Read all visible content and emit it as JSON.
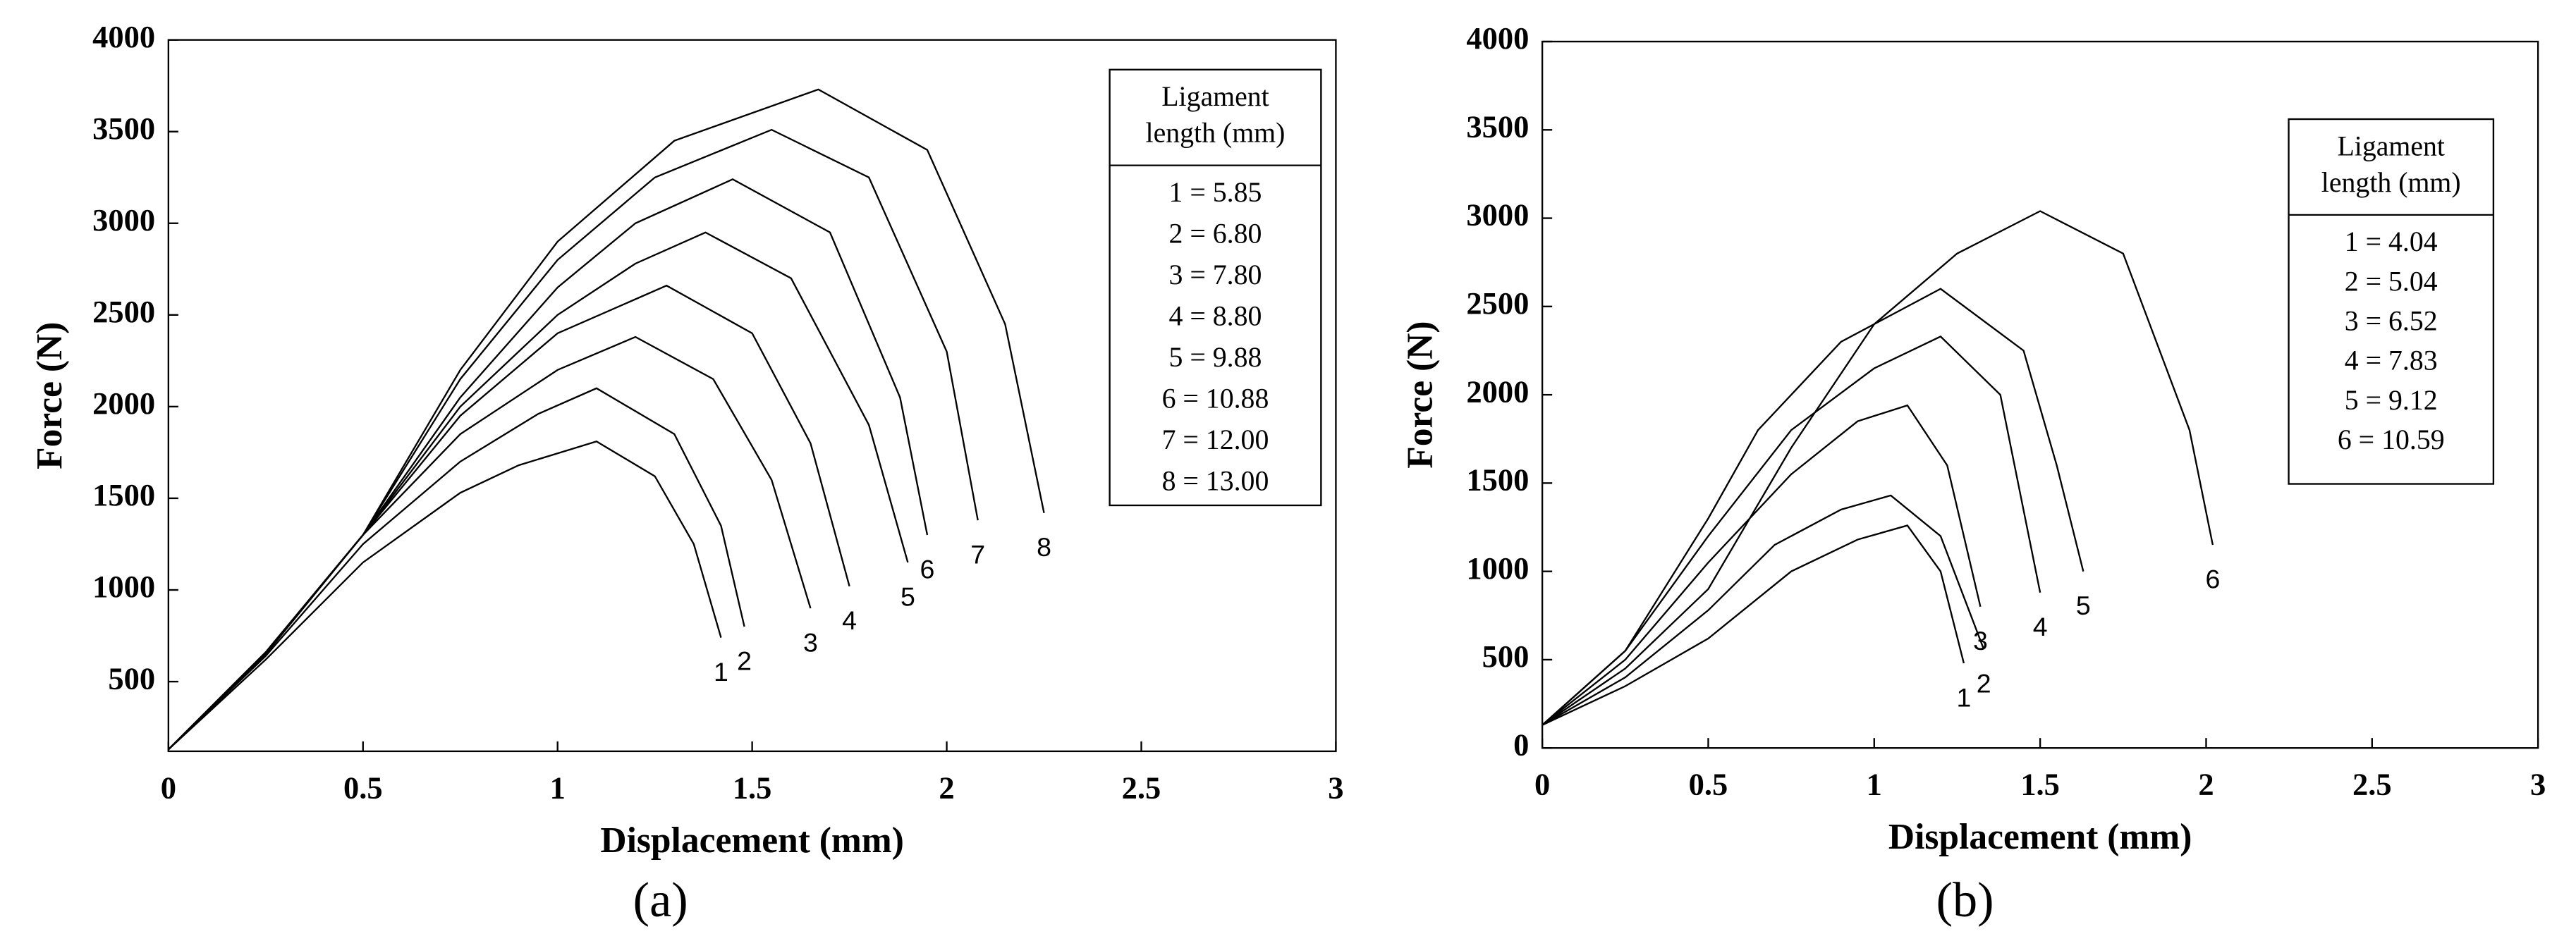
{
  "chart_data": [
    {
      "type": "line",
      "caption": "(a)",
      "x_label": "Displacement (mm)",
      "y_label": "Force (N)",
      "xlim": [
        0,
        3
      ],
      "ylim": [
        120,
        4000
      ],
      "xticks": [
        0,
        0.5,
        1,
        1.5,
        2,
        2.5,
        3
      ],
      "yticks": [
        500,
        1000,
        1500,
        2000,
        2500,
        3000,
        3500,
        4000
      ],
      "legend_title": [
        "Ligament",
        "length (mm)"
      ],
      "legend_position": "upper right",
      "color": "#000000",
      "series": [
        {
          "name": "1 = 5.85",
          "label": "1",
          "x": [
            0,
            0.25,
            0.5,
            0.75,
            0.9,
            1.1,
            1.25,
            1.35,
            1.42
          ],
          "values": [
            130,
            620,
            1150,
            1530,
            1680,
            1810,
            1620,
            1250,
            740
          ]
        },
        {
          "name": "2 = 6.80",
          "label": "2",
          "x": [
            0,
            0.25,
            0.5,
            0.75,
            0.95,
            1.1,
            1.3,
            1.42,
            1.48
          ],
          "values": [
            130,
            640,
            1250,
            1700,
            1960,
            2100,
            1850,
            1350,
            800
          ]
        },
        {
          "name": "3 = 7.80",
          "label": "3",
          "x": [
            0,
            0.25,
            0.5,
            0.75,
            1.0,
            1.2,
            1.4,
            1.55,
            1.65
          ],
          "values": [
            130,
            650,
            1300,
            1850,
            2200,
            2380,
            2150,
            1600,
            900
          ]
        },
        {
          "name": "4 = 8.80",
          "label": "4",
          "x": [
            0,
            0.25,
            0.5,
            0.75,
            1.0,
            1.28,
            1.5,
            1.65,
            1.75
          ],
          "values": [
            130,
            660,
            1300,
            1950,
            2400,
            2660,
            2400,
            1800,
            1020
          ]
        },
        {
          "name": "5 = 9.88",
          "label": "5",
          "x": [
            0,
            0.25,
            0.5,
            0.75,
            1.0,
            1.2,
            1.38,
            1.6,
            1.8,
            1.9
          ],
          "values": [
            130,
            660,
            1300,
            2000,
            2500,
            2780,
            2950,
            2700,
            1900,
            1150
          ]
        },
        {
          "name": "6 = 10.88",
          "label": "6",
          "x": [
            0,
            0.25,
            0.5,
            0.75,
            1.0,
            1.2,
            1.45,
            1.7,
            1.88,
            1.95
          ],
          "values": [
            130,
            660,
            1300,
            2050,
            2650,
            3000,
            3240,
            2950,
            2050,
            1300
          ]
        },
        {
          "name": "7 = 12.00",
          "label": "7",
          "x": [
            0,
            0.25,
            0.5,
            0.75,
            1.0,
            1.25,
            1.55,
            1.8,
            2.0,
            2.08
          ],
          "values": [
            130,
            660,
            1300,
            2150,
            2800,
            3250,
            3510,
            3250,
            2300,
            1380
          ]
        },
        {
          "name": "8 = 13.00",
          "label": "8",
          "x": [
            0,
            0.25,
            0.5,
            0.75,
            1.0,
            1.3,
            1.67,
            1.95,
            2.15,
            2.25
          ],
          "values": [
            130,
            660,
            1300,
            2200,
            2900,
            3450,
            3730,
            3400,
            2450,
            1420
          ]
        }
      ]
    },
    {
      "type": "line",
      "caption": "(b)",
      "x_label": "Displacement (mm)",
      "y_label": "Force (N)",
      "xlim": [
        0,
        3
      ],
      "ylim": [
        0,
        4000
      ],
      "xticks": [
        0,
        0.5,
        1,
        1.5,
        2,
        2.5,
        3
      ],
      "yticks": [
        0,
        500,
        1000,
        1500,
        2000,
        2500,
        3000,
        3500,
        4000
      ],
      "legend_title": [
        "Ligament",
        "length (mm)"
      ],
      "legend_position": "upper right",
      "color": "#000000",
      "series": [
        {
          "name": "1 = 4.04",
          "label": "1",
          "x": [
            0,
            0.25,
            0.5,
            0.75,
            0.95,
            1.1,
            1.2,
            1.27
          ],
          "values": [
            130,
            350,
            620,
            1000,
            1180,
            1260,
            1000,
            480
          ]
        },
        {
          "name": "2 = 5.04",
          "label": "2",
          "x": [
            0,
            0.25,
            0.5,
            0.7,
            0.9,
            1.05,
            1.2,
            1.33
          ],
          "values": [
            130,
            400,
            780,
            1150,
            1350,
            1430,
            1200,
            560
          ]
        },
        {
          "name": "3 = 6.52",
          "label": "3",
          "x": [
            0,
            0.25,
            0.5,
            0.75,
            0.95,
            1.1,
            1.22,
            1.32
          ],
          "values": [
            130,
            500,
            1050,
            1550,
            1850,
            1940,
            1600,
            800
          ]
        },
        {
          "name": "4 = 7.83",
          "label": "4",
          "x": [
            0,
            0.25,
            0.5,
            0.75,
            1.0,
            1.2,
            1.38,
            1.5
          ],
          "values": [
            130,
            550,
            1200,
            1800,
            2150,
            2330,
            2000,
            880
          ]
        },
        {
          "name": "5 = 9.12",
          "label": "5",
          "x": [
            0,
            0.25,
            0.5,
            0.65,
            0.9,
            1.2,
            1.45,
            1.55,
            1.63
          ],
          "values": [
            130,
            550,
            1300,
            1800,
            2300,
            2600,
            2250,
            1600,
            1000
          ]
        },
        {
          "name": "6 = 10.59",
          "label": "6",
          "x": [
            0,
            0.25,
            0.5,
            0.75,
            1.0,
            1.25,
            1.5,
            1.75,
            1.95,
            2.02
          ],
          "values": [
            130,
            450,
            900,
            1700,
            2400,
            2800,
            3040,
            2800,
            1800,
            1150
          ]
        }
      ]
    }
  ]
}
